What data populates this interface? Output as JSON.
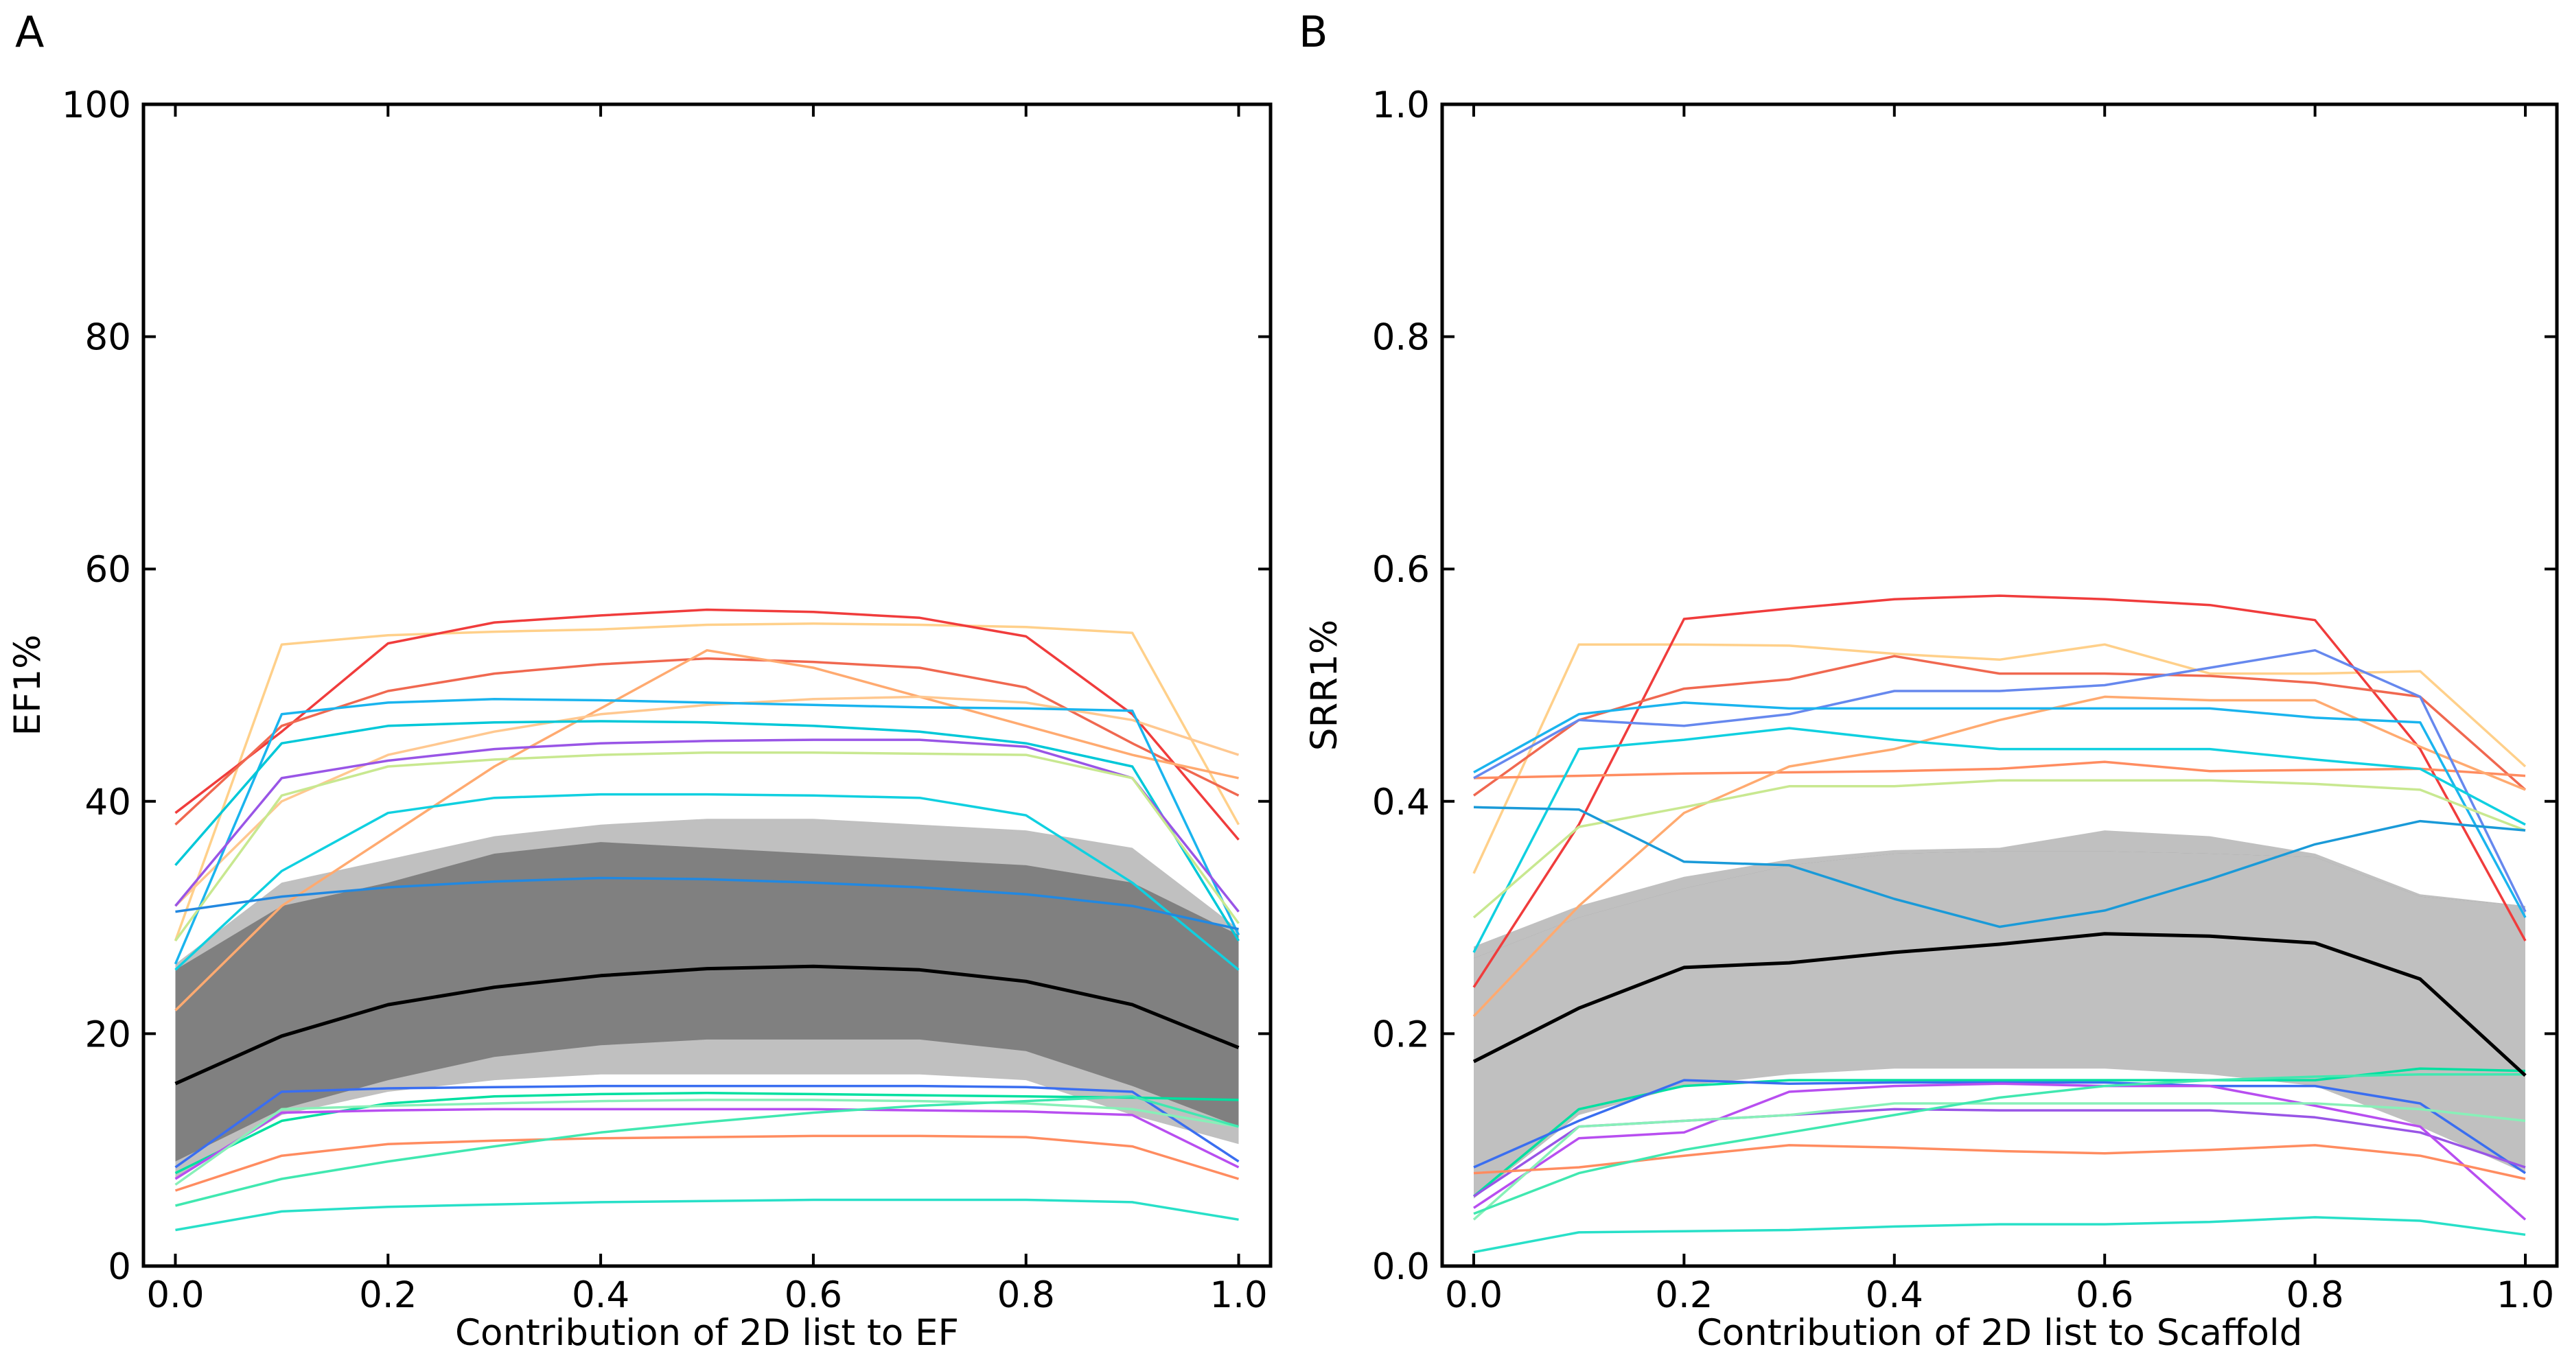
{
  "figure_caption_letters": [
    "A",
    "B"
  ],
  "chart_data": [
    {
      "panel": "A",
      "type": "line",
      "xlabel": "Contribution of 2D list to EF",
      "ylabel": "EF1%",
      "xlim": [
        -0.03,
        1.03
      ],
      "ylim": [
        0,
        100
      ],
      "xticks": [
        0.0,
        0.2,
        0.4,
        0.6,
        0.8,
        1.0
      ],
      "xtick_labels": [
        "0.0",
        "0.2",
        "0.4",
        "0.6",
        "0.8",
        "1.0"
      ],
      "yticks": [
        0,
        20,
        40,
        60,
        80,
        100
      ],
      "ytick_labels": [
        "0",
        "20",
        "40",
        "60",
        "80",
        "100"
      ],
      "grid": false,
      "x": [
        0.0,
        0.1,
        0.2,
        0.3,
        0.4,
        0.5,
        0.6,
        0.7,
        0.8,
        0.9,
        1.0
      ],
      "bands": [
        {
          "name": "outer range",
          "color": "#c0c0c0",
          "upper": [
            26,
            33,
            35,
            37,
            38,
            38.5,
            38.5,
            38,
            37.5,
            36,
            29
          ],
          "lower": [
            7.5,
            13,
            15,
            16,
            16.5,
            16.5,
            16.5,
            16.5,
            16,
            13,
            10.5
          ]
        },
        {
          "name": "inner range",
          "color": "#808080",
          "upper": [
            25.5,
            31,
            33,
            35.5,
            36.5,
            36,
            35.5,
            35,
            34.5,
            33,
            28.5
          ],
          "lower": [
            9,
            13.5,
            16,
            18,
            19,
            19.5,
            19.5,
            19.5,
            18.5,
            15.5,
            12
          ]
        }
      ],
      "mean_line": {
        "name": "mean",
        "color": "#000000",
        "values": [
          15.7,
          19.8,
          22.5,
          24,
          25,
          25.6,
          25.8,
          25.5,
          24.5,
          22.5,
          18.8
        ]
      },
      "series": [
        {
          "color": "#ffd08a",
          "values": [
            28,
            53.5,
            54.3,
            54.6,
            54.8,
            55.2,
            55.3,
            55.2,
            55,
            54.5,
            38
          ]
        },
        {
          "color": "#f03c3c",
          "values": [
            39,
            46,
            53.6,
            55.4,
            56,
            56.5,
            56.3,
            55.8,
            54.2,
            47.5,
            36.7
          ]
        },
        {
          "color": "#f06850",
          "values": [
            38,
            46.5,
            49.5,
            51,
            51.8,
            52.3,
            52,
            51.5,
            49.8,
            45,
            40.5
          ]
        },
        {
          "color": "#ffaa70",
          "values": [
            22,
            31,
            37,
            43,
            48,
            53,
            51.5,
            49,
            46.5,
            44,
            42
          ]
        },
        {
          "color": "#ffc890",
          "values": [
            31,
            40,
            44,
            46,
            47.5,
            48.3,
            48.8,
            49,
            48.5,
            47,
            44
          ]
        },
        {
          "color": "#1ab4ee",
          "values": [
            26,
            47.5,
            48.5,
            48.8,
            48.7,
            48.5,
            48.3,
            48.1,
            48,
            47.8,
            28.5
          ]
        },
        {
          "color": "#00c8d8",
          "values": [
            34.5,
            45,
            46.5,
            46.8,
            46.9,
            46.8,
            46.5,
            46,
            45,
            43,
            28
          ]
        },
        {
          "color": "#9955e6",
          "values": [
            31,
            42,
            43.5,
            44.5,
            45,
            45.2,
            45.3,
            45.3,
            44.7,
            42,
            30.5
          ]
        },
        {
          "color": "#c8e890",
          "values": [
            28,
            40.5,
            43,
            43.6,
            44,
            44.2,
            44.2,
            44.1,
            44,
            42,
            29.5
          ]
        },
        {
          "color": "#10d0e0",
          "values": [
            25.5,
            34,
            39,
            40.3,
            40.6,
            40.6,
            40.5,
            40.3,
            38.8,
            33,
            25.5
          ]
        },
        {
          "color": "#2288e0",
          "values": [
            30.5,
            31.8,
            32.6,
            33.1,
            33.4,
            33.3,
            33,
            32.6,
            32,
            31,
            29
          ]
        },
        {
          "color": "#3a6ef0",
          "values": [
            8.5,
            15,
            15.3,
            15.4,
            15.5,
            15.5,
            15.5,
            15.5,
            15.4,
            15,
            9
          ]
        },
        {
          "color": "#00e0a0",
          "values": [
            8,
            12.5,
            14,
            14.6,
            14.8,
            14.9,
            14.8,
            14.7,
            14.6,
            14.5,
            14.3
          ]
        },
        {
          "color": "#b84ef0",
          "values": [
            7.5,
            13.2,
            13.4,
            13.5,
            13.5,
            13.5,
            13.5,
            13.4,
            13.3,
            13,
            8.5
          ]
        },
        {
          "color": "#88f0b8",
          "values": [
            7,
            13.5,
            13.8,
            14,
            14.2,
            14.3,
            14.3,
            14.2,
            14,
            13.5,
            12
          ]
        },
        {
          "color": "#ff8c60",
          "values": [
            6.5,
            9.5,
            10.5,
            10.8,
            11,
            11.1,
            11.2,
            11.2,
            11.1,
            10.3,
            7.5
          ]
        },
        {
          "color": "#40e8b0",
          "values": [
            5.2,
            7.5,
            9,
            10.3,
            11.5,
            12.4,
            13.2,
            13.8,
            14.2,
            14.6,
            12
          ]
        },
        {
          "color": "#28e0c8",
          "values": [
            3.1,
            4.7,
            5.1,
            5.3,
            5.5,
            5.6,
            5.7,
            5.7,
            5.7,
            5.5,
            4
          ]
        }
      ]
    },
    {
      "panel": "B",
      "type": "line",
      "xlabel": "Contribution of 2D list to Scaffold",
      "ylabel": "SRR1%",
      "xlim": [
        -0.03,
        1.03
      ],
      "ylim": [
        0.0,
        1.0
      ],
      "xticks": [
        0.0,
        0.2,
        0.4,
        0.6,
        0.8,
        1.0
      ],
      "xtick_labels": [
        "0.0",
        "0.2",
        "0.4",
        "0.6",
        "0.8",
        "1.0"
      ],
      "yticks": [
        0.0,
        0.2,
        0.4,
        0.6,
        0.8,
        1.0
      ],
      "ytick_labels": [
        "0.0",
        "0.2",
        "0.4",
        "0.6",
        "0.8",
        "1.0"
      ],
      "grid": false,
      "x": [
        0.0,
        0.1,
        0.2,
        0.3,
        0.4,
        0.5,
        0.6,
        0.7,
        0.8,
        0.9,
        1.0
      ],
      "bands": [
        {
          "name": "outer range",
          "color": "#c0c0c0",
          "upper": [
            0.275,
            0.31,
            0.335,
            0.35,
            0.358,
            0.36,
            0.375,
            0.37,
            0.355,
            0.32,
            0.31
          ],
          "lower": [
            0.058,
            0.13,
            0.155,
            0.165,
            0.17,
            0.17,
            0.17,
            0.165,
            0.155,
            0.12,
            0.08
          ]
        },
        {
          "name": "inner range",
          "color": "#808080",
          "upper": [
            0.265,
            0.3,
            0.325,
            0.345,
            0.355,
            0.357,
            0.357,
            0.355,
            0.352,
            0.318,
            0.31
          ],
          "lower": [
            0.07,
            0.14,
            0.16,
            0.175,
            0.182,
            0.182,
            0.187,
            0.183,
            0.17,
            0.13,
            0.085
          ]
        },
        {
          "name": "light overlap",
          "color": "#c0c0c0",
          "upper": [
            0.265,
            0.3,
            0.325,
            0.345,
            0.355,
            0.357,
            0.357,
            0.355,
            0.352,
            0.318,
            0.31
          ],
          "lower": [
            0.06,
            0.135,
            0.16,
            0.17,
            0.175,
            0.175,
            0.175,
            0.17,
            0.165,
            0.125,
            0.085
          ]
        }
      ],
      "mean_line": {
        "name": "mean",
        "color": "#000000",
        "values": [
          0.176,
          0.222,
          0.257,
          0.261,
          0.27,
          0.277,
          0.286,
          0.284,
          0.278,
          0.247,
          0.164
        ]
      },
      "series": [
        {
          "color": "#ffd08a",
          "values": [
            0.338,
            0.535,
            0.535,
            0.534,
            0.527,
            0.522,
            0.535,
            0.51,
            0.51,
            0.512,
            0.43
          ]
        },
        {
          "color": "#f03c3c",
          "values": [
            0.24,
            0.38,
            0.557,
            0.566,
            0.574,
            0.577,
            0.574,
            0.569,
            0.556,
            0.445,
            0.28
          ]
        },
        {
          "color": "#f06850",
          "values": [
            0.405,
            0.47,
            0.497,
            0.505,
            0.525,
            0.51,
            0.51,
            0.508,
            0.502,
            0.49,
            0.41
          ]
        },
        {
          "color": "#ff8c60",
          "values": [
            0.42,
            0.422,
            0.424,
            0.425,
            0.426,
            0.428,
            0.434,
            0.426,
            0.427,
            0.428,
            0.422
          ]
        },
        {
          "color": "#ffaa70",
          "values": [
            0.215,
            0.31,
            0.39,
            0.43,
            0.445,
            0.47,
            0.49,
            0.487,
            0.487,
            0.447,
            0.41
          ]
        },
        {
          "color": "#6688ee",
          "values": [
            0.42,
            0.47,
            0.465,
            0.475,
            0.495,
            0.495,
            0.5,
            0.515,
            0.53,
            0.49,
            0.305
          ]
        },
        {
          "color": "#1ab4ee",
          "values": [
            0.425,
            0.475,
            0.485,
            0.48,
            0.48,
            0.48,
            0.48,
            0.48,
            0.472,
            0.468,
            0.3
          ]
        },
        {
          "color": "#10d0e0",
          "values": [
            0.27,
            0.445,
            0.453,
            0.463,
            0.453,
            0.445,
            0.445,
            0.445,
            0.436,
            0.428,
            0.38
          ]
        },
        {
          "color": "#c8e890",
          "values": [
            0.3,
            0.378,
            0.395,
            0.413,
            0.413,
            0.418,
            0.418,
            0.418,
            0.415,
            0.41,
            0.375
          ]
        },
        {
          "color": "#1a9ad8",
          "values": [
            0.395,
            0.393,
            0.348,
            0.345,
            0.316,
            0.292,
            0.306,
            0.333,
            0.363,
            0.383,
            0.375
          ]
        },
        {
          "color": "#00e0a0",
          "values": [
            0.06,
            0.135,
            0.155,
            0.16,
            0.16,
            0.16,
            0.16,
            0.16,
            0.16,
            0.17,
            0.168
          ]
        },
        {
          "color": "#3a6ef0",
          "values": [
            0.085,
            0.125,
            0.16,
            0.157,
            0.158,
            0.158,
            0.158,
            0.155,
            0.155,
            0.14,
            0.08
          ]
        },
        {
          "color": "#9955e6",
          "values": [
            0.06,
            0.12,
            0.125,
            0.13,
            0.135,
            0.134,
            0.134,
            0.134,
            0.128,
            0.115,
            0.085
          ]
        },
        {
          "color": "#b84ef0",
          "values": [
            0.05,
            0.11,
            0.115,
            0.15,
            0.155,
            0.157,
            0.155,
            0.155,
            0.138,
            0.12,
            0.04
          ]
        },
        {
          "color": "#88f0b8",
          "values": [
            0.04,
            0.12,
            0.125,
            0.13,
            0.14,
            0.14,
            0.14,
            0.14,
            0.14,
            0.135,
            0.125
          ]
        },
        {
          "color": "#ff8c60",
          "values": [
            0.08,
            0.085,
            0.095,
            0.104,
            0.102,
            0.099,
            0.097,
            0.1,
            0.104,
            0.095,
            0.075
          ]
        },
        {
          "color": "#40e8b0",
          "values": [
            0.045,
            0.08,
            0.1,
            0.115,
            0.13,
            0.145,
            0.155,
            0.16,
            0.163,
            0.165,
            0.165
          ]
        },
        {
          "color": "#28e0c8",
          "values": [
            0.012,
            0.029,
            0.03,
            0.031,
            0.034,
            0.036,
            0.036,
            0.038,
            0.042,
            0.039,
            0.027
          ]
        }
      ]
    }
  ]
}
